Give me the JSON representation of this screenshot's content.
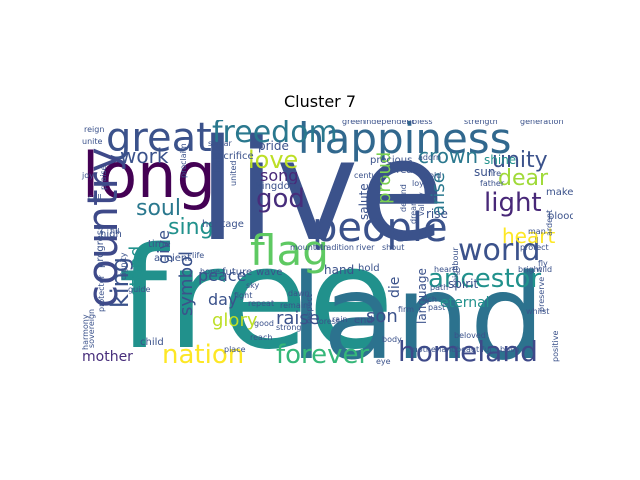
{
  "title": "Cluster 7",
  "words": [
    {
      "text": "free",
      "color": "#21918c"
    },
    {
      "text": "land",
      "color": "#2c728e"
    },
    {
      "text": "live",
      "color": "#3b528b"
    },
    {
      "text": "long",
      "color": "#440154"
    },
    {
      "text": "happiness",
      "color": "#31688e"
    },
    {
      "text": "great",
      "color": "#3b528b"
    },
    {
      "text": "freedom",
      "color": "#2a788e"
    },
    {
      "text": "country",
      "color": "#3e4989"
    },
    {
      "text": "people",
      "color": "#3b528b"
    },
    {
      "text": "world",
      "color": "#3b528b"
    },
    {
      "text": "flag",
      "color": "#5ec962"
    },
    {
      "text": "nation",
      "color": "#fde725"
    },
    {
      "text": "forever",
      "color": "#35b779"
    },
    {
      "text": "homeland",
      "color": "#3e4989"
    },
    {
      "text": "ancestor",
      "color": "#21918c"
    },
    {
      "text": "god",
      "color": "#472d7b"
    },
    {
      "text": "light",
      "color": "#482878"
    },
    {
      "text": "dear",
      "color": "#a0da39"
    },
    {
      "text": "unity",
      "color": "#3b528b"
    },
    {
      "text": "heart",
      "color": "#fde725"
    },
    {
      "text": "crown",
      "color": "#2a788e"
    },
    {
      "text": "king",
      "color": "#3b528b"
    },
    {
      "text": "love",
      "color": "#bddf26"
    },
    {
      "text": "soul",
      "color": "#2a788e"
    },
    {
      "text": "work",
      "color": "#3b528b"
    },
    {
      "text": "sing",
      "color": "#21918c"
    },
    {
      "text": "stand",
      "color": "#21918c"
    },
    {
      "text": "song",
      "color": "#482878"
    },
    {
      "text": "proud",
      "color": "#7ad151"
    },
    {
      "text": "arise",
      "color": "#2a788e"
    },
    {
      "text": "symbol",
      "color": "#3b528b"
    },
    {
      "text": "give",
      "color": "#3b528b"
    },
    {
      "text": "peace",
      "color": "#3b528b"
    },
    {
      "text": "glory",
      "color": "#bddf26"
    },
    {
      "text": "day",
      "color": "#3b528b"
    },
    {
      "text": "raise",
      "color": "#3b528b"
    },
    {
      "text": "son",
      "color": "#3b528b"
    },
    {
      "text": "mother",
      "color": "#472d7b"
    },
    {
      "text": "papua",
      "color": "#3e4989"
    },
    {
      "text": "sun",
      "color": "#3b528b"
    },
    {
      "text": "shine",
      "color": "#21918c"
    },
    {
      "text": "die",
      "color": "#3b528b"
    },
    {
      "text": "spirit",
      "color": "#3b528b"
    },
    {
      "text": "eternal",
      "color": "#21918c"
    },
    {
      "text": "hand",
      "color": "#3b528b"
    },
    {
      "text": "hold",
      "color": "#3b528b"
    },
    {
      "text": "kingdom",
      "color": "#3b528b"
    },
    {
      "text": "time",
      "color": "#3b528b"
    },
    {
      "text": "ancient",
      "color": "#3b528b"
    },
    {
      "text": "wave",
      "color": "#3b528b"
    },
    {
      "text": "future",
      "color": "#3b528b"
    },
    {
      "text": "heritage",
      "color": "#3b528b"
    },
    {
      "text": "pride",
      "color": "#3b528b"
    },
    {
      "text": "salute",
      "color": "#3b528b"
    },
    {
      "text": "end",
      "color": "#3b528b"
    },
    {
      "text": "rise",
      "color": "#3b528b"
    },
    {
      "text": "language",
      "color": "#3b528b"
    },
    {
      "text": "sacrifice",
      "color": "#3b528b"
    },
    {
      "text": "precious",
      "color": "#3b528b"
    },
    {
      "text": "break",
      "color": "#3b528b"
    },
    {
      "text": "blood",
      "color": "#3b528b"
    },
    {
      "text": "make",
      "color": "#3b528b"
    },
    {
      "text": "high",
      "color": "#3b528b"
    },
    {
      "text": "progress",
      "color": "#3b528b"
    },
    {
      "text": "child",
      "color": "#3b528b"
    },
    {
      "text": "strength",
      "color": "#3b528b"
    },
    {
      "text": "generation",
      "color": "#3b528b"
    },
    {
      "text": "green",
      "color": "#3b528b"
    },
    {
      "text": "independent",
      "color": "#3b528b"
    },
    {
      "text": "reign",
      "color": "#3b528b"
    },
    {
      "text": "praise",
      "color": "#3b528b"
    },
    {
      "text": "united",
      "color": "#3b528b"
    },
    {
      "text": "mountain",
      "color": "#3b528b"
    },
    {
      "text": "tradition",
      "color": "#3b528b"
    },
    {
      "text": "river",
      "color": "#3b528b"
    },
    {
      "text": "shout",
      "color": "#3b528b"
    },
    {
      "text": "fire",
      "color": "#3b528b"
    },
    {
      "text": "father",
      "color": "#3b528b"
    },
    {
      "text": "motherland",
      "color": "#3b528b"
    },
    {
      "text": "beautiful",
      "color": "#3b528b"
    },
    {
      "text": "beloved",
      "color": "#3b528b"
    },
    {
      "text": "bush",
      "color": "#3b528b"
    },
    {
      "text": "place",
      "color": "#3b528b"
    },
    {
      "text": "reach",
      "color": "#3b528b"
    },
    {
      "text": "good",
      "color": "#3b528b"
    },
    {
      "text": "dawn",
      "color": "#3b528b"
    },
    {
      "text": "remain",
      "color": "#3b528b"
    },
    {
      "text": "sky",
      "color": "#3b528b"
    },
    {
      "text": "fight",
      "color": "#3b528b"
    },
    {
      "text": "repeat",
      "color": "#3b528b"
    },
    {
      "text": "fly",
      "color": "#3b528b"
    },
    {
      "text": "bright",
      "color": "#3b528b"
    },
    {
      "text": "path",
      "color": "#3b528b"
    },
    {
      "text": "gold",
      "color": "#3b528b"
    },
    {
      "text": "century",
      "color": "#3b528b"
    },
    {
      "text": "eye",
      "color": "#3b528b"
    },
    {
      "text": "rich",
      "color": "#3b528b"
    },
    {
      "text": "firm",
      "color": "#3b528b"
    },
    {
      "text": "past",
      "color": "#3b528b"
    },
    {
      "text": "loyal",
      "color": "#3b528b"
    },
    {
      "text": "defend",
      "color": "#3b528b"
    },
    {
      "text": "honour",
      "color": "#3b528b"
    },
    {
      "text": "valley",
      "color": "#3b528b"
    },
    {
      "text": "joy",
      "color": "#3b528b"
    },
    {
      "text": "call",
      "color": "#3b528b"
    },
    {
      "text": "guide",
      "color": "#3b528b"
    },
    {
      "text": "strong",
      "color": "#3b528b"
    },
    {
      "text": "body",
      "color": "#3b528b"
    },
    {
      "text": "forest",
      "color": "#3b528b"
    },
    {
      "text": "preserve",
      "color": "#3b528b"
    },
    {
      "text": "whilst",
      "color": "#3b528b"
    },
    {
      "text": "wild",
      "color": "#3b528b"
    },
    {
      "text": "positive",
      "color": "#3b528b"
    },
    {
      "text": "harmony",
      "color": "#3b528b"
    },
    {
      "text": "sovereign",
      "color": "#3b528b"
    },
    {
      "text": "dignity",
      "color": "#3b528b"
    },
    {
      "text": "fill",
      "color": "#3b528b"
    },
    {
      "text": "protector",
      "color": "#3b528b"
    },
    {
      "text": "life",
      "color": "#3b528b"
    },
    {
      "text": "hope",
      "color": "#3b528b"
    },
    {
      "text": "unite",
      "color": "#3b528b"
    },
    {
      "text": "swear",
      "color": "#3b528b"
    },
    {
      "text": "proclaim",
      "color": "#3b528b"
    },
    {
      "text": "dream",
      "color": "#3b528b"
    },
    {
      "text": "bless",
      "color": "#3b528b"
    },
    {
      "text": "man",
      "color": "#3b528b"
    },
    {
      "text": "protect",
      "color": "#3b528b"
    },
    {
      "text": "respect",
      "color": "#3b528b"
    },
    {
      "text": "ardent",
      "color": "#3b528b"
    },
    {
      "text": "neighbour",
      "color": "#3b528b"
    },
    {
      "text": "rain",
      "color": "#3b528b"
    },
    {
      "text": "adorn",
      "color": "#3b528b"
    },
    {
      "text": "hearth",
      "color": "#3b528b"
    }
  ]
}
